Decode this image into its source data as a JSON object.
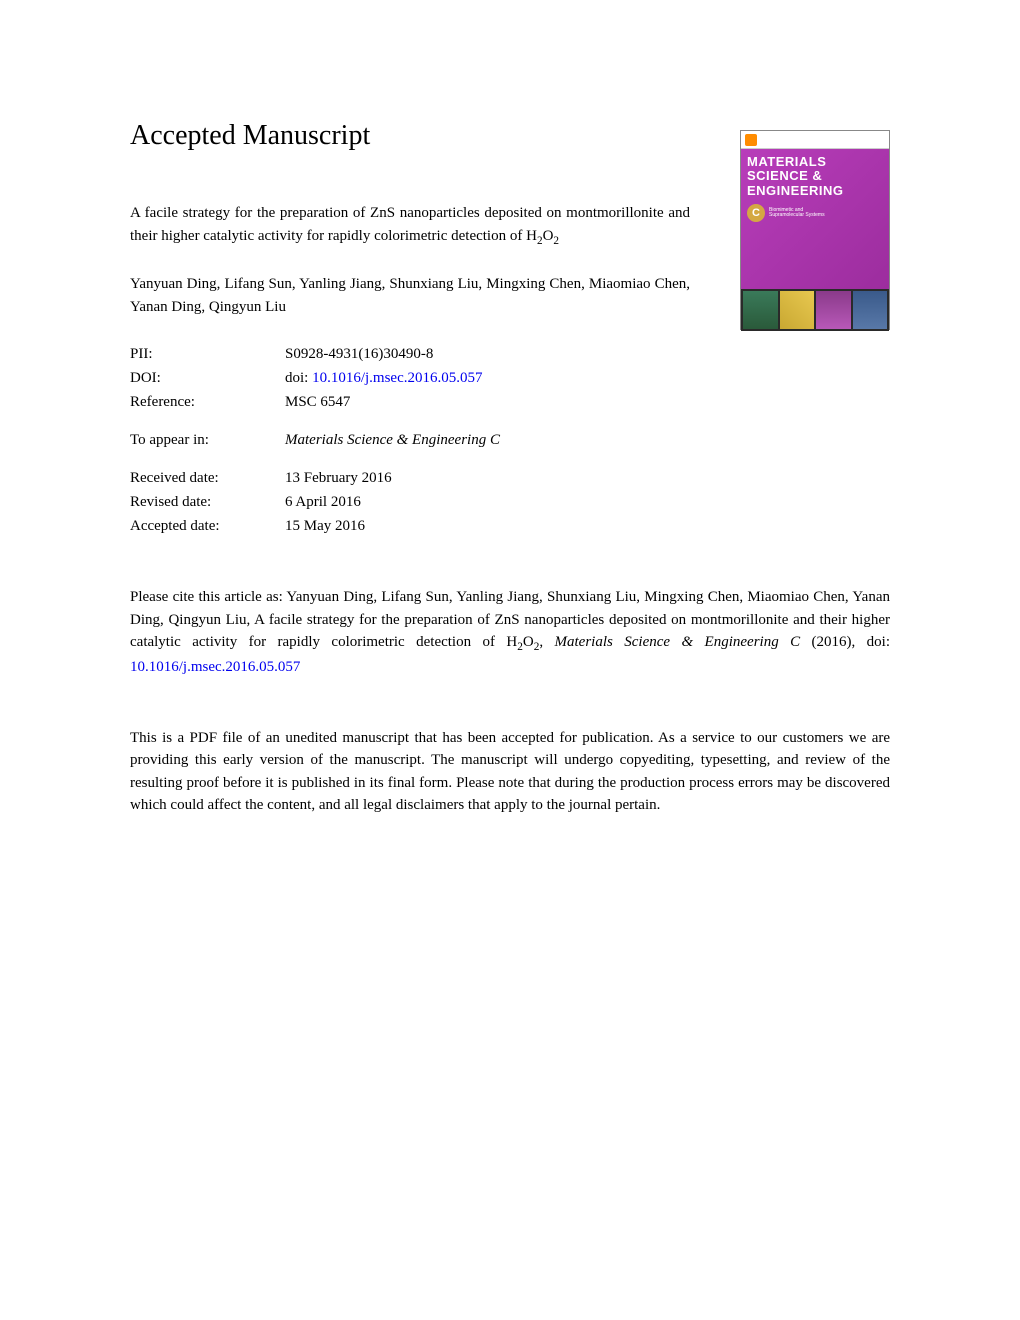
{
  "header": {
    "title": "Accepted Manuscript"
  },
  "cover": {
    "journal_line1": "MATERIALS",
    "journal_line2": "SCIENCE &",
    "journal_line3": "ENGINEERING",
    "badge_letter": "C",
    "badge_sub1": "Biomimetic and",
    "badge_sub2": "Supramolecular Systems"
  },
  "article": {
    "title_prefix": "A facile strategy for the preparation of ZnS nanoparticles deposited on montmorillonite and their higher catalytic activity for rapidly colorimetric detection of H",
    "title_sub1": "2",
    "title_mid": "O",
    "title_sub2": "2"
  },
  "authors": "Yanyuan Ding, Lifang Sun, Yanling Jiang, Shunxiang Liu, Mingxing Chen, Miaomiao Chen, Yanan Ding, Qingyun Liu",
  "meta": {
    "pii_label": "PII:",
    "pii_value": "S0928-4931(16)30490-8",
    "doi_label": "DOI:",
    "doi_prefix": "doi: ",
    "doi_link": "10.1016/j.msec.2016.05.057",
    "ref_label": "Reference:",
    "ref_value": "MSC 6547",
    "appear_label": "To appear in:",
    "appear_value": "Materials Science & Engineering C",
    "received_label": "Received date:",
    "received_value": "13 February 2016",
    "revised_label": "Revised date:",
    "revised_value": "6 April 2016",
    "accepted_label": "Accepted date:",
    "accepted_value": "15 May 2016"
  },
  "citation": {
    "prefix": "Please cite this article as: Yanyuan Ding, Lifang Sun, Yanling Jiang, Shunxiang Liu, Mingxing Chen, Miaomiao Chen, Yanan Ding, Qingyun Liu, A facile strategy for the preparation of ZnS nanoparticles deposited on montmorillonite and their higher catalytic activity for rapidly colorimetric detection of H",
    "sub1": "2",
    "mid": "O",
    "sub2": "2",
    "after": ", ",
    "journal": "Materials Science & Engineering C",
    "year": " (2016), doi: ",
    "doi_link": "10.1016/j.msec.2016.05.057"
  },
  "disclaimer": "This is a PDF file of an unedited manuscript that has been accepted for publication. As a service to our customers we are providing this early version of the manuscript. The manuscript will undergo copyediting, typesetting, and review of the resulting proof before it is published in its final form. Please note that during the production process errors may be discovered which could affect the content, and all legal disclaimers that apply to the journal pertain."
}
